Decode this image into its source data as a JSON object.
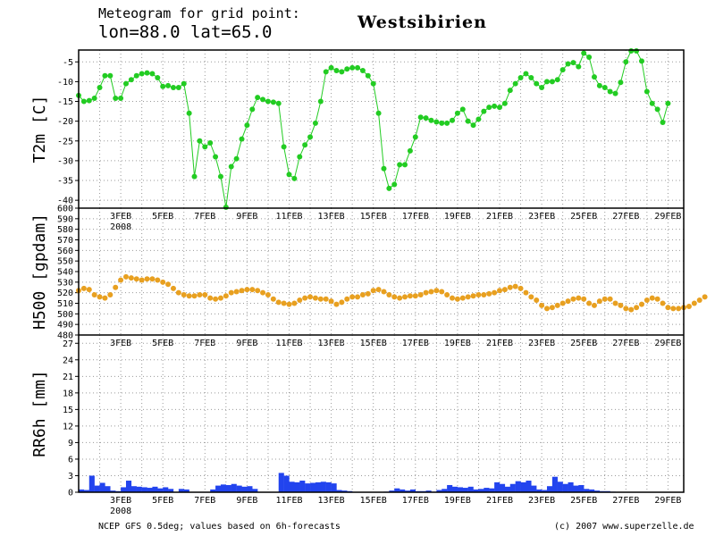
{
  "header": {
    "title_line1": "Meteogram for grid point:",
    "title_line2": "lon=88.0  lat=65.0",
    "region": "Westsibirien"
  },
  "footer": {
    "left": "NCEP GFS 0.5deg; values based on 6h-forecasts",
    "right": "(c) 2007 www.superzelle.de"
  },
  "colors": {
    "t2m": "#22cc22",
    "h500": "#e8a020",
    "rr6h": "#2244ee"
  },
  "chart_data": [
    {
      "type": "line",
      "ylabel": "T2m [C]",
      "ylim": [
        -42,
        -2
      ],
      "yticks": [
        -5,
        -10,
        -15,
        -20,
        -25,
        -30,
        -35,
        -40
      ],
      "grid": true,
      "x_start": "2008-02-01T00",
      "step_hours": 6,
      "x_labels": [
        "3FEB",
        "5FEB",
        "7FEB",
        "9FEB",
        "11FEB",
        "13FEB",
        "15FEB",
        "17FEB",
        "19FEB",
        "21FEB",
        "23FEB",
        "25FEB",
        "27FEB",
        "29FEB"
      ],
      "year_label": "2008",
      "values": [
        -13.5,
        -15,
        -14.8,
        -14.2,
        -11.5,
        -8.5,
        -8.5,
        -14.2,
        -14.2,
        -10.5,
        -9.5,
        -8.5,
        -8,
        -7.8,
        -8,
        -9,
        -11.2,
        -11,
        -11.5,
        -11.5,
        -10.5,
        -18,
        -34,
        -25,
        -26.5,
        -25.5,
        -29,
        -34,
        -42,
        -31.5,
        -29.5,
        -24.5,
        -21,
        -17,
        -14,
        -14.5,
        -15,
        -15.2,
        -15.5,
        -26.5,
        -33.5,
        -34.5,
        -29,
        -26,
        -24,
        -20.5,
        -15,
        -7.5,
        -6.5,
        -7.2,
        -7.5,
        -6.8,
        -6.5,
        -6.5,
        -7.2,
        -8.5,
        -10.5,
        -18,
        -32,
        -37,
        -36,
        -31,
        -31,
        -27.5,
        -24,
        -19,
        -19.2,
        -19.8,
        -20.2,
        -20.5,
        -20.5,
        -19.8,
        -18,
        -17,
        -20,
        -21,
        -19.5,
        -17.5,
        -16.5,
        -16.2,
        -16.5,
        -15.5,
        -12.2,
        -10.5,
        -9,
        -8,
        -9,
        -10.5,
        -11.5,
        -10,
        -10,
        -9.5,
        -7,
        -5.5,
        -5.2,
        -6.2,
        -2.8,
        -3.8,
        -8.8,
        -11,
        -11.5,
        -12.5,
        -13,
        -10.2,
        -5,
        -1.5,
        -1.5,
        -4.8,
        -12.5,
        -15.5,
        -17,
        -20.3,
        -15.5
      ]
    },
    {
      "type": "scatter",
      "ylabel": "H500 [gpdam]",
      "ylim": [
        480,
        600
      ],
      "yticks": [
        480,
        490,
        500,
        510,
        520,
        530,
        540,
        550,
        560,
        570,
        580,
        590,
        600
      ],
      "grid": true,
      "x_start": "2008-02-01T00",
      "step_hours": 6,
      "x_labels": [
        "3FEB",
        "5FEB",
        "7FEB",
        "9FEB",
        "11FEB",
        "13FEB",
        "15FEB",
        "17FEB",
        "19FEB",
        "21FEB",
        "23FEB",
        "25FEB",
        "27FEB",
        "29FEB"
      ],
      "year_label": "2008",
      "values": [
        522,
        524,
        523,
        518,
        516,
        515,
        518,
        525,
        532,
        535,
        534,
        533,
        532,
        533,
        533,
        532,
        530,
        528,
        524,
        520,
        518,
        517,
        517,
        518,
        518,
        515,
        514,
        515,
        517,
        520,
        521,
        522,
        523,
        523,
        522,
        520,
        518,
        514,
        511,
        510,
        509,
        510,
        513,
        515,
        516,
        515,
        514,
        514,
        512,
        509,
        511,
        514,
        516,
        516,
        518,
        519,
        522,
        523,
        521,
        518,
        516,
        515,
        516,
        517,
        517,
        518,
        520,
        521,
        522,
        521,
        518,
        515,
        514,
        515,
        516,
        517,
        518,
        518,
        519,
        520,
        522,
        523,
        525,
        526,
        524,
        520,
        516,
        513,
        508,
        505,
        506,
        508,
        510,
        512,
        514,
        515,
        514,
        510,
        508,
        512,
        514,
        514,
        510,
        508,
        505,
        504,
        506,
        509,
        513,
        515,
        514,
        510,
        506,
        505,
        505,
        506,
        507,
        510,
        513,
        516
      ]
    },
    {
      "type": "bar",
      "ylabel": "RR6h [mm]",
      "ylim": [
        0,
        28.5
      ],
      "yticks": [
        0,
        3,
        6,
        9,
        12,
        15,
        18,
        21,
        24,
        27
      ],
      "grid": true,
      "x_start": "2008-02-01T00",
      "step_hours": 6,
      "x_labels": [
        "3FEB",
        "5FEB",
        "7FEB",
        "9FEB",
        "11FEB",
        "13FEB",
        "15FEB",
        "17FEB",
        "19FEB",
        "21FEB",
        "23FEB",
        "25FEB",
        "27FEB",
        "29FEB"
      ],
      "year_label": "2008",
      "values": [
        0.5,
        0.4,
        3,
        1.2,
        1.7,
        1.1,
        0.3,
        0.2,
        0.9,
        2.1,
        1.1,
        1,
        0.9,
        0.8,
        1,
        0.7,
        0.9,
        0.6,
        0,
        0.6,
        0.5,
        0,
        0,
        0,
        0,
        0.5,
        1.2,
        1.4,
        1.3,
        1.5,
        1.2,
        1,
        1.1,
        0.6,
        0,
        0,
        0,
        0,
        3.5,
        3,
        1.9,
        1.8,
        2.1,
        1.6,
        1.7,
        1.8,
        1.9,
        1.8,
        1.6,
        0.4,
        0.3,
        0.2,
        0,
        0,
        0,
        0,
        0,
        0,
        0.1,
        0.3,
        0.7,
        0.5,
        0.3,
        0.5,
        0.2,
        0.2,
        0.3,
        0.1,
        0.4,
        0.6,
        1.3,
        1,
        0.9,
        0.8,
        1,
        0.5,
        0.6,
        0.8,
        0.7,
        1.8,
        1.5,
        1,
        1.5,
        2,
        1.8,
        2.1,
        1.2,
        0.5,
        0.4,
        1.1,
        2.8,
        1.9,
        1.5,
        1.8,
        1.2,
        1.3,
        0.6,
        0.5,
        0.3,
        0.2,
        0.2,
        0.1
      ]
    }
  ]
}
